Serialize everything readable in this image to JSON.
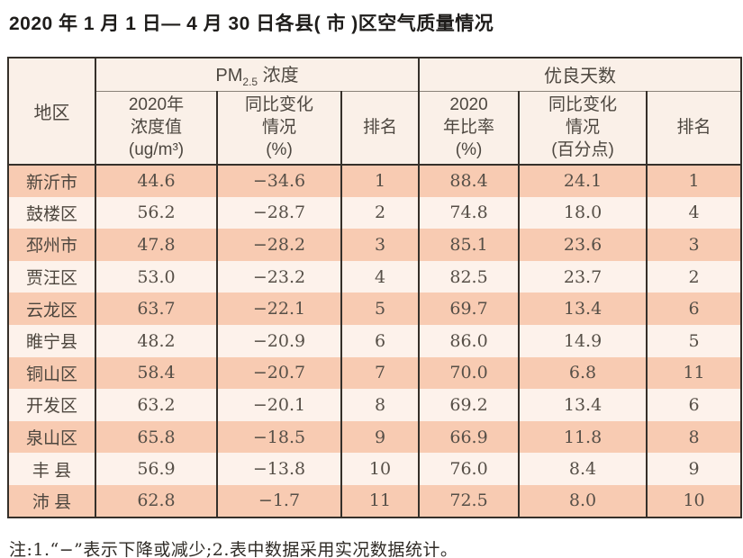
{
  "page": {
    "title": "2020 年 1 月 1 日— 4 月 30 日各县( 市 )区空气质量情况",
    "note": "注:1.“−”表示下降或减少;2.表中数据采用实况数据统计。"
  },
  "table": {
    "region_header": "地区",
    "groups": {
      "pm25": {
        "prefix": "PM",
        "sub": "2.5",
        "suffix": " 浓度"
      },
      "good_days": "优良天数"
    },
    "subheaders": {
      "pm25_value": "2020年\n浓度值\n(ug/m³)",
      "pm25_change": "同比变化\n情况\n(%)",
      "pm25_rank": "排名",
      "good_ratio": "2020\n年比率\n(%)",
      "good_change": "同比变化\n情况\n(百分点)",
      "good_rank": "排名"
    },
    "rows": [
      {
        "region": "新沂市",
        "pm25_value": "44.6",
        "pm25_change": "−34.6",
        "pm25_rank": "1",
        "good_ratio": "88.4",
        "good_change": "24.1",
        "good_rank": "1"
      },
      {
        "region": "鼓楼区",
        "pm25_value": "56.2",
        "pm25_change": "−28.7",
        "pm25_rank": "2",
        "good_ratio": "74.8",
        "good_change": "18.0",
        "good_rank": "4"
      },
      {
        "region": "邳州市",
        "pm25_value": "47.8",
        "pm25_change": "−28.2",
        "pm25_rank": "3",
        "good_ratio": "85.1",
        "good_change": "23.6",
        "good_rank": "3"
      },
      {
        "region": "贾汪区",
        "pm25_value": "53.0",
        "pm25_change": "−23.2",
        "pm25_rank": "4",
        "good_ratio": "82.5",
        "good_change": "23.7",
        "good_rank": "2"
      },
      {
        "region": "云龙区",
        "pm25_value": "63.7",
        "pm25_change": "−22.1",
        "pm25_rank": "5",
        "good_ratio": "69.7",
        "good_change": "13.4",
        "good_rank": "6"
      },
      {
        "region": "睢宁县",
        "pm25_value": "48.2",
        "pm25_change": "−20.9",
        "pm25_rank": "6",
        "good_ratio": "86.0",
        "good_change": "14.9",
        "good_rank": "5"
      },
      {
        "region": "铜山区",
        "pm25_value": "58.4",
        "pm25_change": "−20.7",
        "pm25_rank": "7",
        "good_ratio": "70.0",
        "good_change": "6.8",
        "good_rank": "11"
      },
      {
        "region": "开发区",
        "pm25_value": "63.2",
        "pm25_change": "−20.1",
        "pm25_rank": "8",
        "good_ratio": "69.2",
        "good_change": "13.4",
        "good_rank": "6"
      },
      {
        "region": "泉山区",
        "pm25_value": "65.8",
        "pm25_change": "−18.5",
        "pm25_rank": "9",
        "good_ratio": "66.9",
        "good_change": "11.8",
        "good_rank": "8"
      },
      {
        "region": "丰 县",
        "pm25_value": "56.9",
        "pm25_change": "−13.8",
        "pm25_rank": "10",
        "good_ratio": "76.0",
        "good_change": "8.4",
        "good_rank": "9"
      },
      {
        "region": "沛 县",
        "pm25_value": "62.8",
        "pm25_change": "−1.7",
        "pm25_rank": "11",
        "good_ratio": "72.5",
        "good_change": "8.0",
        "good_rank": "10"
      }
    ]
  },
  "colors": {
    "row_odd_bg": "#f8cbb2",
    "row_even_bg": "#fdf2eb",
    "header_bg": "#faf0e8",
    "border": "#35302a",
    "text": "#4d4740"
  }
}
